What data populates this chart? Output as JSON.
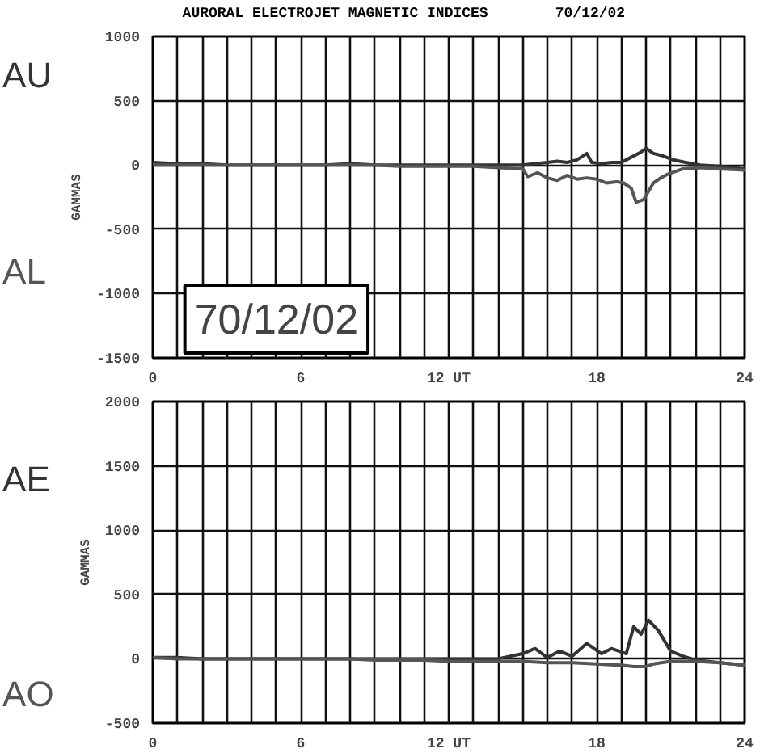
{
  "chart_data": [
    {
      "type": "line",
      "title": "AURORAL ELECTROJET MAGNETIC INDICES",
      "subtitle": "70/12/02",
      "ylabel": "GAMMAS",
      "annotations": [
        "70/12/02"
      ],
      "xlim": [
        0,
        24
      ],
      "ylim": [
        -1500,
        1000
      ],
      "yticks": [
        -1500,
        -1000,
        -500,
        0,
        500,
        1000
      ],
      "xticks": [
        0,
        {
          "value": 1,
          "label": null
        },
        {
          "value": 2,
          "label": null
        },
        {
          "value": 3,
          "label": null
        },
        {
          "value": 4,
          "label": null
        },
        {
          "value": 5,
          "label": null
        },
        6,
        {
          "value": 7,
          "label": null
        },
        {
          "value": 8,
          "label": null
        },
        {
          "value": 9,
          "label": null
        },
        {
          "value": 10,
          "label": null
        },
        {
          "value": 11,
          "label": null
        },
        {
          "value": 12,
          "label": "12 UT"
        },
        {
          "value": 13,
          "label": null
        },
        {
          "value": 14,
          "label": null
        },
        {
          "value": 15,
          "label": null
        },
        {
          "value": 16,
          "label": null
        },
        {
          "value": 17,
          "label": null
        },
        18,
        {
          "value": 19,
          "label": null
        },
        {
          "value": 20,
          "label": null
        },
        {
          "value": 21,
          "label": null
        },
        {
          "value": 22,
          "label": null
        },
        {
          "value": 23,
          "label": null
        },
        24
      ],
      "grid": true,
      "line_style": "solid",
      "series": [
        {
          "name": "AU",
          "color": "#333333",
          "x": [
            0,
            1,
            2,
            3,
            4,
            5,
            6,
            7,
            8,
            9,
            10,
            11,
            12,
            13,
            14,
            15,
            15.5,
            16,
            16.4,
            16.8,
            17.2,
            17.6,
            17.8,
            18.2,
            18.6,
            19,
            19.4,
            19.8,
            20,
            20.3,
            20.7,
            21.1,
            21.6,
            22.2,
            23,
            24
          ],
          "values": [
            20,
            10,
            10,
            0,
            0,
            0,
            0,
            0,
            10,
            0,
            0,
            0,
            0,
            0,
            0,
            0,
            10,
            20,
            30,
            20,
            40,
            90,
            20,
            10,
            20,
            20,
            60,
            100,
            130,
            90,
            70,
            40,
            20,
            0,
            -10,
            -30
          ]
        },
        {
          "name": "AL",
          "color": "#555555",
          "x": [
            0,
            1,
            2,
            3,
            4,
            5,
            6,
            7,
            8,
            9,
            10,
            11,
            12,
            13,
            14,
            15,
            15.2,
            15.6,
            16,
            16.4,
            16.8,
            17.2,
            17.6,
            18,
            18.4,
            18.8,
            19.1,
            19.4,
            19.6,
            19.9,
            20.3,
            20.6,
            20.9,
            21.5,
            22.2,
            23,
            24
          ],
          "values": [
            0,
            0,
            0,
            0,
            0,
            0,
            0,
            0,
            0,
            0,
            -10,
            -10,
            -10,
            -10,
            -20,
            -30,
            -90,
            -60,
            -100,
            -120,
            -80,
            -110,
            -100,
            -110,
            -140,
            -130,
            -140,
            -180,
            -290,
            -270,
            -140,
            -100,
            -70,
            -30,
            -20,
            -30,
            -40
          ]
        }
      ]
    },
    {
      "type": "line",
      "ylabel": "GAMMAS",
      "xlim": [
        0,
        24
      ],
      "ylim": [
        -500,
        2000
      ],
      "yticks": [
        -500,
        0,
        500,
        1000,
        1500,
        2000
      ],
      "xticks": [
        0,
        {
          "value": 1,
          "label": null
        },
        {
          "value": 2,
          "label": null
        },
        {
          "value": 3,
          "label": null
        },
        {
          "value": 4,
          "label": null
        },
        {
          "value": 5,
          "label": null
        },
        6,
        {
          "value": 7,
          "label": null
        },
        {
          "value": 8,
          "label": null
        },
        {
          "value": 9,
          "label": null
        },
        {
          "value": 10,
          "label": null
        },
        {
          "value": 11,
          "label": null
        },
        {
          "value": 12,
          "label": "12 UT"
        },
        {
          "value": 13,
          "label": null
        },
        {
          "value": 14,
          "label": null
        },
        {
          "value": 15,
          "label": null
        },
        {
          "value": 16,
          "label": null
        },
        {
          "value": 17,
          "label": null
        },
        18,
        {
          "value": 19,
          "label": null
        },
        {
          "value": 20,
          "label": null
        },
        {
          "value": 21,
          "label": null
        },
        {
          "value": 22,
          "label": null
        },
        {
          "value": 23,
          "label": null
        },
        24
      ],
      "grid": true,
      "line_style": "solid",
      "series": [
        {
          "name": "AE",
          "color": "#333333",
          "x": [
            0,
            1,
            2,
            3,
            4,
            5,
            6,
            7,
            8,
            9,
            10,
            11,
            12,
            13,
            14,
            15,
            15.5,
            16,
            16.5,
            17,
            17.6,
            18.2,
            18.6,
            19.2,
            19.5,
            19.8,
            20.1,
            20.5,
            21,
            21.5,
            22,
            23,
            24
          ],
          "values": [
            10,
            10,
            0,
            0,
            0,
            0,
            0,
            0,
            0,
            0,
            0,
            0,
            0,
            0,
            0,
            40,
            80,
            10,
            60,
            20,
            120,
            40,
            80,
            40,
            250,
            190,
            300,
            220,
            60,
            20,
            -10,
            -30,
            -50
          ]
        },
        {
          "name": "AO",
          "color": "#555555",
          "x": [
            0,
            1,
            2,
            3,
            4,
            5,
            6,
            7,
            8,
            9,
            10,
            11,
            12,
            13,
            14,
            15,
            16,
            17,
            18,
            19,
            19.5,
            20,
            20.3,
            21,
            22,
            23,
            24
          ],
          "values": [
            10,
            0,
            0,
            0,
            0,
            0,
            0,
            0,
            0,
            -10,
            -10,
            -10,
            -20,
            -20,
            -20,
            -20,
            -30,
            -30,
            -40,
            -50,
            -60,
            -60,
            -40,
            -20,
            -20,
            -30,
            -50
          ]
        }
      ]
    }
  ]
}
